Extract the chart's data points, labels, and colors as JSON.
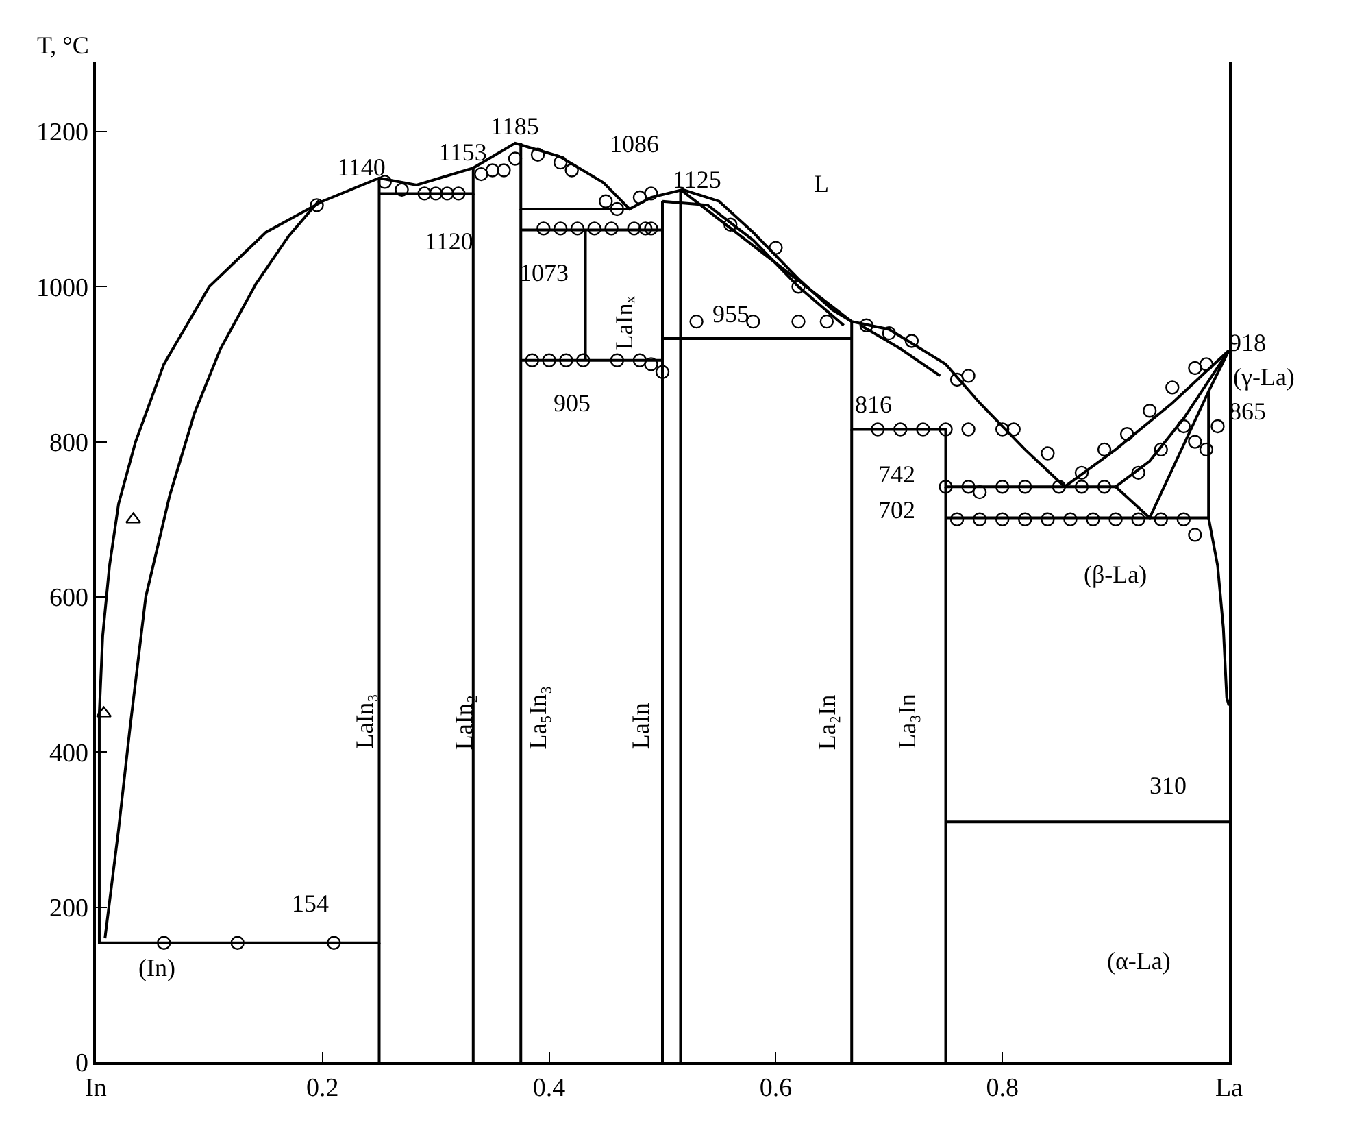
{
  "chart_data": {
    "type": "line",
    "ylabel": "T, °C",
    "xlim": [
      0,
      1
    ],
    "ylim": [
      0,
      1290
    ],
    "xticks": [
      {
        "value": 0,
        "label": "In"
      },
      0.2,
      0.4,
      0.6,
      0.8,
      {
        "value": 1,
        "label": "La"
      }
    ],
    "yticks": [
      0,
      200,
      400,
      600,
      800,
      1000,
      1200
    ],
    "marker": "none",
    "line_style": "solid",
    "series": [
      {
        "color": "#000000",
        "x": [
          0.25,
          0.25,
          0.003,
          0.003,
          0.006,
          0.012,
          0.02,
          0.035,
          0.06,
          0.1,
          0.15,
          0.2,
          0.25,
          0.283,
          0.333,
          0.37,
          0.409,
          0.448,
          0.471,
          0.49,
          0.518,
          0.55,
          0.58,
          0.62,
          0.65,
          0.667,
          0.7,
          0.75,
          0.78,
          0.82,
          0.855,
          0.9,
          0.95,
          1.0
        ],
        "values": [
          1140,
          154,
          154,
          450,
          550,
          640,
          720,
          800,
          900,
          1000,
          1070,
          1110,
          1140,
          1131,
          1153,
          1185,
          1168,
          1134,
          1100,
          1115,
          1125,
          1110,
          1070,
          1010,
          970,
          955,
          945,
          900,
          850,
          790,
          742,
          790,
          850,
          918
        ]
      },
      {
        "color": "#000000",
        "x": [
          0.008,
          0.02,
          0.03,
          0.044,
          0.065,
          0.087,
          0.11,
          0.141,
          0.17,
          0.197
        ],
        "values": [
          160,
          300,
          430,
          600,
          730,
          837,
          920,
          1003,
          1065,
          1111
        ]
      },
      {
        "color": "#000000",
        "x": [
          0.25,
          0.25
        ],
        "values": [
          0,
          154
        ]
      },
      {
        "color": "#000000",
        "x": [
          0.25,
          0.333,
          0.333
        ],
        "values": [
          1120,
          1120,
          1153
        ]
      },
      {
        "color": "#000000",
        "x": [
          0.333,
          0.333
        ],
        "values": [
          0,
          1120
        ]
      },
      {
        "color": "#000000",
        "x": [
          0.375,
          0.375,
          0.471
        ],
        "values": [
          1185,
          1100,
          1100
        ]
      },
      {
        "color": "#000000",
        "x": [
          0.375,
          0.375
        ],
        "values": [
          0,
          1100
        ]
      },
      {
        "color": "#000000",
        "x": [
          0.375,
          0.5
        ],
        "values": [
          1073,
          1073
        ]
      },
      {
        "color": "#000000",
        "x": [
          0.375,
          0.5
        ],
        "values": [
          905,
          905
        ]
      },
      {
        "color": "#000000",
        "x": [
          0.432,
          0.432
        ],
        "values": [
          905,
          1073
        ]
      },
      {
        "color": "#000000",
        "x": [
          0.5,
          0.5
        ],
        "values": [
          0,
          1110
        ]
      },
      {
        "color": "#000000",
        "x": [
          0.5,
          0.54,
          0.58,
          0.62,
          0.66
        ],
        "values": [
          1110,
          1105,
          1060,
          1000,
          950
        ]
      },
      {
        "color": "#000000",
        "x": [
          0.516,
          0.516,
          0.667,
          0.667,
          0.75,
          0.75,
          0.9
        ],
        "values": [
          0,
          1125,
          955,
          816,
          816,
          742,
          742
        ]
      },
      {
        "color": "#000000",
        "x": [
          0.5,
          0.667
        ],
        "values": [
          933,
          933
        ]
      },
      {
        "color": "#000000",
        "x": [
          0.667,
          0.667
        ],
        "values": [
          0,
          816
        ]
      },
      {
        "color": "#000000",
        "x": [
          0.675,
          0.71,
          0.745
        ],
        "values": [
          950,
          920,
          885
        ]
      },
      {
        "color": "#000000",
        "x": [
          0.75,
          0.75
        ],
        "values": [
          0,
          742
        ]
      },
      {
        "color": "#000000",
        "x": [
          0.9,
          0.93,
          0.96,
          1.0
        ],
        "values": [
          742,
          775,
          830,
          918
        ]
      },
      {
        "color": "#000000",
        "x": [
          0.9,
          0.93,
          0.982
        ],
        "values": [
          742,
          702,
          865
        ]
      },
      {
        "color": "#000000",
        "x": [
          0.75,
          0.982
        ],
        "values": [
          702,
          702
        ]
      },
      {
        "color": "#000000",
        "x": [
          1.0,
          0.982,
          0.982,
          0.99,
          0.995,
          0.998,
          1.0
        ],
        "values": [
          918,
          865,
          702,
          640,
          560,
          470,
          460
        ]
      },
      {
        "color": "#000000",
        "x": [
          0.75,
          1.0
        ],
        "values": [
          310,
          310
        ]
      },
      {
        "type": "scatter",
        "color": "#000000",
        "marker": "circle",
        "x": [
          0.06,
          0.125,
          0.21,
          0.195,
          0.255,
          0.27,
          0.29,
          0.3,
          0.31,
          0.32,
          0.34,
          0.35,
          0.36,
          0.37,
          0.39,
          0.41,
          0.42,
          0.45,
          0.46,
          0.395,
          0.41,
          0.425,
          0.44,
          0.455,
          0.475,
          0.485,
          0.49,
          0.385,
          0.4,
          0.415,
          0.43,
          0.46,
          0.48,
          0.49,
          0.5,
          0.48,
          0.49,
          0.56,
          0.6,
          0.62,
          0.53,
          0.58,
          0.62,
          0.645,
          0.68,
          0.7,
          0.72,
          0.76,
          0.77,
          0.69,
          0.71,
          0.73,
          0.75,
          0.77,
          0.8,
          0.81,
          0.84,
          0.75,
          0.77,
          0.78,
          0.8,
          0.82,
          0.85,
          0.87,
          0.89,
          0.76,
          0.78,
          0.8,
          0.82,
          0.84,
          0.86,
          0.88,
          0.9,
          0.92,
          0.94,
          0.96,
          0.97,
          0.87,
          0.89,
          0.91,
          0.93,
          0.95,
          0.97,
          0.98,
          0.92,
          0.94,
          0.96,
          0.97,
          0.98,
          0.99
        ],
        "values": [
          154,
          154,
          154,
          1105,
          1135,
          1125,
          1120,
          1120,
          1120,
          1120,
          1145,
          1150,
          1150,
          1165,
          1170,
          1160,
          1150,
          1110,
          1100,
          1075,
          1075,
          1075,
          1075,
          1075,
          1075,
          1075,
          1075,
          905,
          905,
          905,
          905,
          905,
          905,
          900,
          890,
          1115,
          1120,
          1080,
          1050,
          1000,
          955,
          955,
          955,
          955,
          950,
          940,
          930,
          880,
          885,
          816,
          816,
          816,
          816,
          816,
          816,
          816,
          785,
          742,
          742,
          735,
          742,
          742,
          742,
          742,
          742,
          700,
          700,
          700,
          700,
          700,
          700,
          700,
          700,
          700,
          700,
          700,
          680,
          760,
          790,
          810,
          840,
          870,
          895,
          900,
          760,
          790,
          820,
          800,
          790,
          820
        ]
      },
      {
        "type": "scatter",
        "color": "#000000",
        "marker": "triangle",
        "x": [
          0.033,
          0.007
        ],
        "values": [
          700,
          450
        ]
      }
    ],
    "annotations": [
      "1140",
      "1153",
      "1185",
      "1086",
      "1125",
      "L",
      "1120",
      "1073",
      "LaInₓ",
      "905",
      "955",
      "816",
      "742",
      "702",
      "918",
      "(γ-La)",
      "865",
      "(β-La)",
      "310",
      "(α-La)",
      "(In)",
      "154",
      "LaIn₃",
      "LaIn₂",
      "La₅In₃",
      "LaIn",
      "La₂In",
      "La₃In"
    ]
  }
}
